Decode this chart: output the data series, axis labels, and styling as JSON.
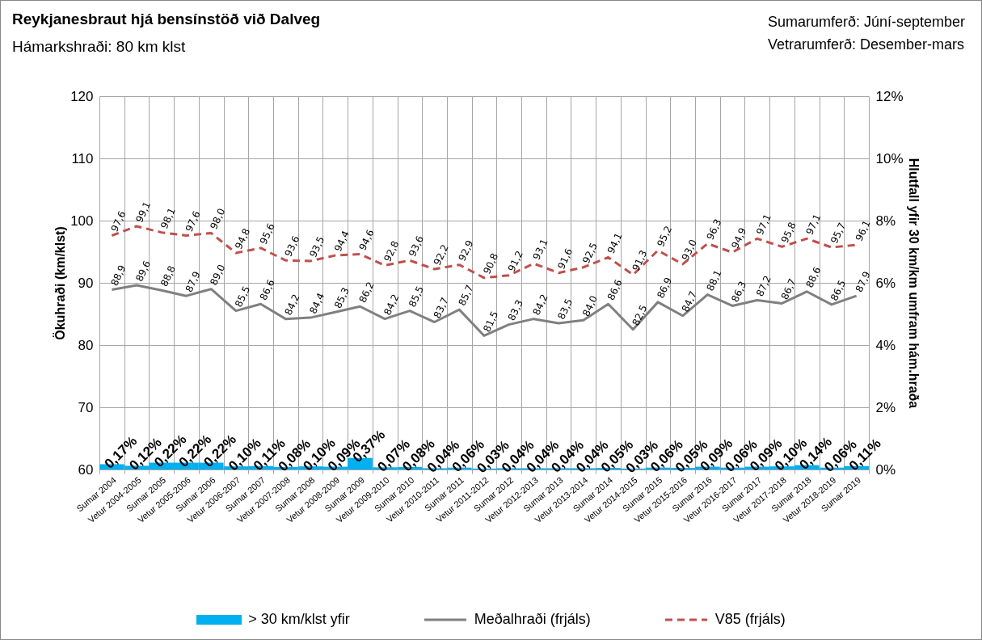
{
  "chart_data": {
    "type": "line",
    "title": "Reykjanesbraut  hjá bensínstöð  við Dalveg",
    "subtitle": "Hámarkshraði:  80 km klst",
    "annotations": [
      "Sumarumferð: Júní-september",
      "Vetrarumferð: Desember-mars"
    ],
    "ylabel": "Ökuhraði (km/klst)",
    "y2label": "Hlutfall yfir 30 km/km umfram hám.hraða",
    "categories": [
      "Sumar 2004",
      "Vetur 2004-2005",
      "Sumar 2005",
      "Vetur 2005-2006",
      "Sumar 2006",
      "Vetur 2006-2007",
      "Sumar 2007",
      "Vetur 2007-2008",
      "Sumar 2008",
      "Vetur 2008-2009",
      "Sumar 2009",
      "Vetur 2009-2010",
      "Sumar 2010",
      "Vetur 2010-2011",
      "Sumar 2011",
      "Vetur 2011-2012",
      "Sumar 2012",
      "Vetur 2012-2013",
      "Sumar 2013",
      "Vetur 2013-2014",
      "Sumar 2014",
      "Vetur 2014-2015",
      "Sumar 2015",
      "Vetur 2015-2016",
      "Sumar 2016",
      "Vetur 2016-2017",
      "Sumar 2017",
      "Vetur 2017-2018",
      "Sumar 2018",
      "Vetur 2018-2019",
      "Sumar 2019"
    ],
    "series": [
      {
        "name": "> 30 km/klst yfir",
        "type": "bar",
        "axis": "y2",
        "color": "#00b0f0",
        "values": [
          0.17,
          0.12,
          0.22,
          0.22,
          0.22,
          0.1,
          0.11,
          0.08,
          0.1,
          0.09,
          0.37,
          0.07,
          0.08,
          0.04,
          0.06,
          0.03,
          0.04,
          0.04,
          0.04,
          0.04,
          0.05,
          0.03,
          0.06,
          0.05,
          0.09,
          0.06,
          0.09,
          0.1,
          0.14,
          0.06,
          0.11
        ],
        "value_labels": [
          "0,17%",
          "0,12%",
          "0,22%",
          "0,22%",
          "0,22%",
          "0,10%",
          "0,11%",
          "0,08%",
          "0,10%",
          "0,09%",
          "0,37%",
          "0,07%",
          "0,08%",
          "0,04%",
          "0,06%",
          "0,03%",
          "0,04%",
          "0,04%",
          "0,04%",
          "0,04%",
          "0,05%",
          "0,03%",
          "0,06%",
          "0,05%",
          "0,09%",
          "0,06%",
          "0,09%",
          "0,10%",
          "0,14%",
          "0,06%",
          "0,11%"
        ]
      },
      {
        "name": "Meðalhraði (frjáls)",
        "color": "#808080",
        "line_style": "solid",
        "values": [
          88.9,
          89.6,
          88.8,
          87.9,
          89.0,
          85.5,
          86.6,
          84.2,
          84.4,
          85.3,
          86.2,
          84.2,
          85.5,
          83.7,
          85.7,
          81.5,
          83.3,
          84.2,
          83.5,
          84.0,
          86.6,
          82.5,
          86.9,
          84.7,
          88.1,
          86.3,
          87.2,
          86.7,
          88.6,
          86.5,
          87.9
        ],
        "value_labels": [
          "88,9",
          "89,6",
          "88,8",
          "87,9",
          "89,0",
          "85,5",
          "86,6",
          "84,2",
          "84,4",
          "85,3",
          "86,2",
          "84,2",
          "85,5",
          "83,7",
          "85,7",
          "81,5",
          "83,3",
          "84,2",
          "83,5",
          "84,0",
          "86,6",
          "82,5",
          "86,9",
          "84,7",
          "88,1",
          "86,3",
          "87,2",
          "86,7",
          "88,6",
          "86,5",
          "87,9"
        ]
      },
      {
        "name": "V85 (frjáls)",
        "color": "#c0504d",
        "line_style": "dashed",
        "values": [
          97.6,
          99.1,
          98.1,
          97.6,
          98.0,
          94.8,
          95.6,
          93.6,
          93.5,
          94.4,
          94.6,
          92.8,
          93.6,
          92.2,
          92.9,
          90.8,
          91.2,
          93.1,
          91.6,
          92.5,
          94.1,
          91.3,
          95.2,
          93.0,
          96.3,
          94.9,
          97.1,
          95.8,
          97.1,
          95.7,
          96.1
        ],
        "value_labels": [
          "97,6",
          "99,1",
          "98,1",
          "97,6",
          "98,0",
          "94,8",
          "95,6",
          "93,6",
          "93,5",
          "94,4",
          "94,6",
          "92,8",
          "93,6",
          "92,2",
          "92,9",
          "90,8",
          "91,2",
          "93,1",
          "91,6",
          "92,5",
          "94,1",
          "91,3",
          "95,2",
          "93,0",
          "96,3",
          "94,9",
          "97,1",
          "95,8",
          "97,1",
          "95,7",
          "96,1"
        ]
      }
    ],
    "ylim": [
      60,
      120
    ],
    "yticks": [
      60,
      70,
      80,
      90,
      100,
      110,
      120
    ],
    "y2lim": [
      0,
      12
    ],
    "y2ticks": [
      {
        "value": 0,
        "label": "0%"
      },
      {
        "value": 2,
        "label": "2%"
      },
      {
        "value": 4,
        "label": "4%"
      },
      {
        "value": 6,
        "label": "6%"
      },
      {
        "value": 8,
        "label": "8%"
      },
      {
        "value": 10,
        "label": "10%"
      },
      {
        "value": 12,
        "label": "12%"
      }
    ],
    "grid": true,
    "legend": "bottom"
  }
}
